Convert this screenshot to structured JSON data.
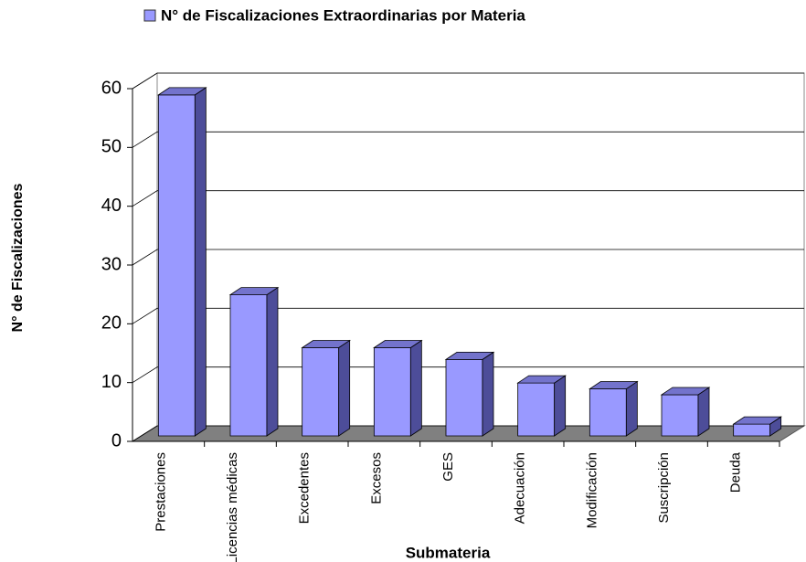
{
  "chart_data": {
    "type": "bar3d",
    "series_name": "N° de Fiscalizaciones Extraordinarias por Materia",
    "y_label": "N° de Fiscalizaciones",
    "x_label": "Submateria",
    "categories": [
      "Prestaciones",
      "Licencias médicas",
      "Excedentes",
      "Excesos",
      "GES",
      "Adecuación",
      "Modificación",
      "Suscripción",
      "Deuda"
    ],
    "values": [
      58,
      24,
      15,
      15,
      13,
      9,
      8,
      7,
      2
    ],
    "color": "#9999ff",
    "ylim": [
      0,
      60
    ],
    "yticks": [
      0,
      10,
      20,
      30,
      40,
      50,
      60
    ],
    "grid": true
  }
}
